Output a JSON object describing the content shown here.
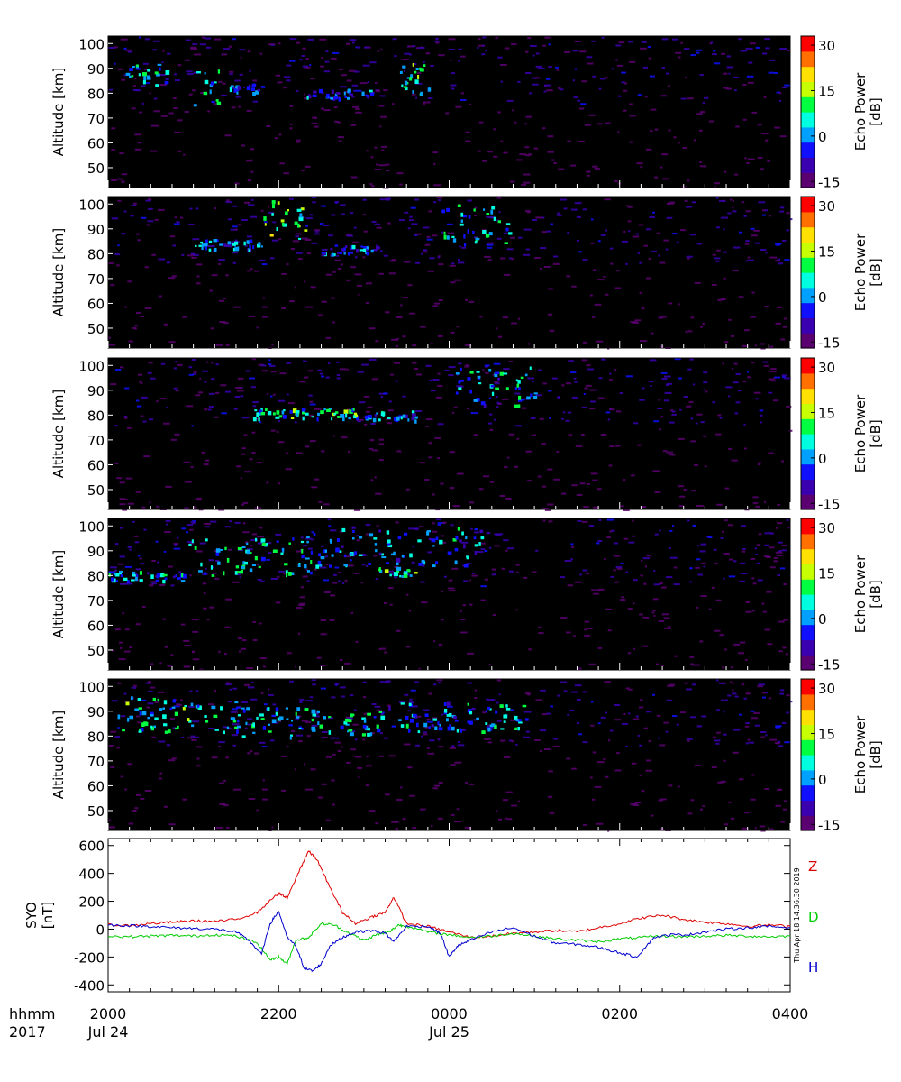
{
  "colors": {
    "background": "#ffffff",
    "panel_bg": "#000000",
    "z_trace": "#dd0000",
    "d_trace": "#00cc00",
    "h_trace": "#0000cc"
  },
  "colorscale": [
    "#5a0070",
    "#3a00b0",
    "#1010ff",
    "#00a0ff",
    "#00ffe0",
    "#00ff40",
    "#c8ff00",
    "#ffe000",
    "#ff7000",
    "#ff0000"
  ],
  "chart_data": [
    {
      "type": "heatmap",
      "panel": 1,
      "ylabel": "Altitude [km]",
      "ylim": [
        42,
        103
      ],
      "yticks": [
        "50",
        "60",
        "70",
        "80",
        "90",
        "100"
      ],
      "colorbar": {
        "label": "Echo Power [dB]",
        "range": [
          -17,
          33
        ],
        "ticks": [
          "30",
          "15",
          "0",
          "-15"
        ]
      },
      "echo_layers": [
        {
          "time": [
            0.04,
            0.14
          ],
          "alt": [
            83,
            92
          ],
          "power": 8
        },
        {
          "time": [
            0.28,
            0.36
          ],
          "alt": [
            80,
            84
          ],
          "power": 3
        },
        {
          "time": [
            0.46,
            0.62
          ],
          "alt": [
            78,
            82
          ],
          "power": 2
        },
        {
          "time": [
            0.2,
            0.26
          ],
          "alt": [
            74,
            90
          ],
          "power": 10
        },
        {
          "time": [
            0.68,
            0.78
          ],
          "alt": [
            80,
            93
          ],
          "power": 12
        }
      ]
    },
    {
      "type": "heatmap",
      "panel": 2,
      "ylabel": "Altitude [km]",
      "ylim": [
        42,
        103
      ],
      "yticks": [
        "50",
        "60",
        "70",
        "80",
        "90",
        "100"
      ],
      "colorbar": {
        "label": "Echo Power [dB]",
        "range": [
          -17,
          33
        ],
        "ticks": [
          "30",
          "15",
          "0",
          "-15"
        ]
      },
      "echo_layers": [
        {
          "time": [
            0.2,
            0.36
          ],
          "alt": [
            82,
            86
          ],
          "power": 4
        },
        {
          "time": [
            0.36,
            0.46
          ],
          "alt": [
            84,
            102
          ],
          "power": 15
        },
        {
          "time": [
            0.5,
            0.64
          ],
          "alt": [
            80,
            84
          ],
          "power": 2
        },
        {
          "time": [
            0.78,
            0.94
          ],
          "alt": [
            84,
            100
          ],
          "power": 10
        }
      ]
    },
    {
      "type": "heatmap",
      "panel": 3,
      "ylabel": "Altitude [km]",
      "ylim": [
        42,
        103
      ],
      "yticks": [
        "50",
        "60",
        "70",
        "80",
        "90",
        "100"
      ],
      "colorbar": {
        "label": "Echo Power [dB]",
        "range": [
          -17,
          33
        ],
        "ticks": [
          "30",
          "15",
          "0",
          "-15"
        ]
      },
      "echo_layers": [
        {
          "time": [
            0.34,
            0.6
          ],
          "alt": [
            79,
            83
          ],
          "power": 10
        },
        {
          "time": [
            0.6,
            0.72
          ],
          "alt": [
            78,
            82
          ],
          "power": 5
        },
        {
          "time": [
            0.8,
            1.0
          ],
          "alt": [
            84,
            100
          ],
          "power": 6
        }
      ]
    },
    {
      "type": "heatmap",
      "panel": 4,
      "ylabel": "Altitude [km]",
      "ylim": [
        42,
        103
      ],
      "yticks": [
        "50",
        "60",
        "70",
        "80",
        "90",
        "100"
      ],
      "colorbar": {
        "label": "Echo Power [dB]",
        "range": [
          -17,
          33
        ],
        "ticks": [
          "30",
          "15",
          "0",
          "-15"
        ]
      },
      "echo_layers": [
        {
          "time": [
            0.0,
            0.18
          ],
          "alt": [
            78,
            82
          ],
          "power": 6
        },
        {
          "time": [
            0.18,
            0.48
          ],
          "alt": [
            80,
            96
          ],
          "power": 9
        },
        {
          "time": [
            0.62,
            0.72
          ],
          "alt": [
            80,
            84
          ],
          "power": 12
        },
        {
          "time": [
            0.48,
            0.9
          ],
          "alt": [
            84,
            100
          ],
          "power": 5
        }
      ]
    },
    {
      "type": "heatmap",
      "panel": 5,
      "ylabel": "Altitude [km]",
      "ylim": [
        42,
        103
      ],
      "yticks": [
        "50",
        "60",
        "70",
        "80",
        "90",
        "100"
      ],
      "colorbar": {
        "label": "Echo Power [dB]",
        "range": [
          -17,
          33
        ],
        "ticks": [
          "30",
          "15",
          "0",
          "-15"
        ]
      },
      "echo_layers": [
        {
          "time": [
            0.02,
            0.3
          ],
          "alt": [
            82,
            96
          ],
          "power": 10
        },
        {
          "time": [
            0.3,
            0.62
          ],
          "alt": [
            80,
            92
          ],
          "power": 8
        },
        {
          "time": [
            0.62,
            0.98
          ],
          "alt": [
            82,
            94
          ],
          "power": 6
        }
      ]
    },
    {
      "type": "line",
      "panel": 6,
      "ylabel": "SYO [nT]",
      "ylim": [
        -450,
        650
      ],
      "yticks": [
        "600",
        "400",
        "200",
        "0",
        "-200",
        "-400"
      ],
      "timestamp": "Thu Apr 18 14:36:30 2019",
      "series": [
        {
          "name": "Z",
          "points": [
            [
              0,
              30
            ],
            [
              0.05,
              25
            ],
            [
              0.1,
              40
            ],
            [
              0.15,
              50
            ],
            [
              0.2,
              60
            ],
            [
              0.25,
              55
            ],
            [
              0.3,
              70
            ],
            [
              0.35,
              120
            ],
            [
              0.4,
              260
            ],
            [
              0.42,
              220
            ],
            [
              0.45,
              430
            ],
            [
              0.47,
              560
            ],
            [
              0.49,
              500
            ],
            [
              0.52,
              300
            ],
            [
              0.55,
              120
            ],
            [
              0.58,
              40
            ],
            [
              0.62,
              90
            ],
            [
              0.65,
              120
            ],
            [
              0.67,
              230
            ],
            [
              0.7,
              40
            ],
            [
              0.75,
              20
            ],
            [
              0.8,
              -20
            ],
            [
              0.85,
              -60
            ],
            [
              0.9,
              -50
            ],
            [
              0.95,
              -30
            ],
            [
              1.0,
              -20
            ],
            [
              1.05,
              -10
            ],
            [
              1.1,
              -20
            ],
            [
              1.15,
              10
            ],
            [
              1.2,
              40
            ],
            [
              1.25,
              80
            ],
            [
              1.3,
              100
            ],
            [
              1.35,
              70
            ],
            [
              1.4,
              50
            ],
            [
              1.45,
              40
            ],
            [
              1.5,
              20
            ],
            [
              1.55,
              30
            ],
            [
              1.6,
              20
            ]
          ]
        },
        {
          "name": "D",
          "points": [
            [
              0,
              -50
            ],
            [
              0.05,
              -55
            ],
            [
              0.1,
              -50
            ],
            [
              0.15,
              -45
            ],
            [
              0.2,
              -50
            ],
            [
              0.25,
              -40
            ],
            [
              0.3,
              -50
            ],
            [
              0.35,
              -100
            ],
            [
              0.38,
              -220
            ],
            [
              0.4,
              -200
            ],
            [
              0.42,
              -250
            ],
            [
              0.44,
              -80
            ],
            [
              0.47,
              -60
            ],
            [
              0.5,
              40
            ],
            [
              0.53,
              30
            ],
            [
              0.56,
              -20
            ],
            [
              0.6,
              -80
            ],
            [
              0.63,
              -40
            ],
            [
              0.66,
              -20
            ],
            [
              0.68,
              30
            ],
            [
              0.7,
              20
            ],
            [
              0.75,
              -20
            ],
            [
              0.8,
              -40
            ],
            [
              0.85,
              -60
            ],
            [
              0.9,
              -50
            ],
            [
              0.95,
              -30
            ],
            [
              1.0,
              -50
            ],
            [
              1.05,
              -70
            ],
            [
              1.1,
              -80
            ],
            [
              1.15,
              -90
            ],
            [
              1.2,
              -70
            ],
            [
              1.25,
              -60
            ],
            [
              1.3,
              -50
            ],
            [
              1.35,
              -55
            ],
            [
              1.4,
              -50
            ],
            [
              1.45,
              -45
            ],
            [
              1.5,
              -50
            ],
            [
              1.55,
              -55
            ],
            [
              1.6,
              -50
            ]
          ]
        },
        {
          "name": "H",
          "points": [
            [
              0,
              30
            ],
            [
              0.05,
              25
            ],
            [
              0.1,
              20
            ],
            [
              0.15,
              10
            ],
            [
              0.2,
              5
            ],
            [
              0.25,
              0
            ],
            [
              0.3,
              -20
            ],
            [
              0.33,
              -80
            ],
            [
              0.36,
              -180
            ],
            [
              0.38,
              40
            ],
            [
              0.4,
              130
            ],
            [
              0.42,
              -60
            ],
            [
              0.44,
              -120
            ],
            [
              0.46,
              -280
            ],
            [
              0.48,
              -300
            ],
            [
              0.5,
              -250
            ],
            [
              0.52,
              -120
            ],
            [
              0.55,
              -60
            ],
            [
              0.58,
              -20
            ],
            [
              0.62,
              -10
            ],
            [
              0.65,
              -30
            ],
            [
              0.67,
              -90
            ],
            [
              0.7,
              20
            ],
            [
              0.75,
              20
            ],
            [
              0.78,
              -30
            ],
            [
              0.8,
              -200
            ],
            [
              0.82,
              -120
            ],
            [
              0.85,
              -80
            ],
            [
              0.9,
              -20
            ],
            [
              0.95,
              10
            ],
            [
              1.0,
              -50
            ],
            [
              1.05,
              -100
            ],
            [
              1.1,
              -110
            ],
            [
              1.15,
              -130
            ],
            [
              1.2,
              -170
            ],
            [
              1.24,
              -200
            ],
            [
              1.28,
              -60
            ],
            [
              1.32,
              -40
            ],
            [
              1.36,
              -40
            ],
            [
              1.4,
              -20
            ],
            [
              1.45,
              0
            ],
            [
              1.5,
              10
            ],
            [
              1.55,
              20
            ],
            [
              1.6,
              10
            ]
          ]
        }
      ]
    }
  ],
  "time_axis": {
    "row1_label": "hhmm",
    "row2_label": "2017",
    "ticks": [
      {
        "t": 0.0,
        "label": "2000",
        "date": "Jul 24"
      },
      {
        "t": 0.4,
        "label": "2200",
        "date": ""
      },
      {
        "t": 0.8,
        "label": "0000",
        "date": "Jul 25"
      },
      {
        "t": 1.2,
        "label": "0200",
        "date": ""
      },
      {
        "t": 1.6,
        "label": "0400",
        "date": ""
      }
    ]
  }
}
